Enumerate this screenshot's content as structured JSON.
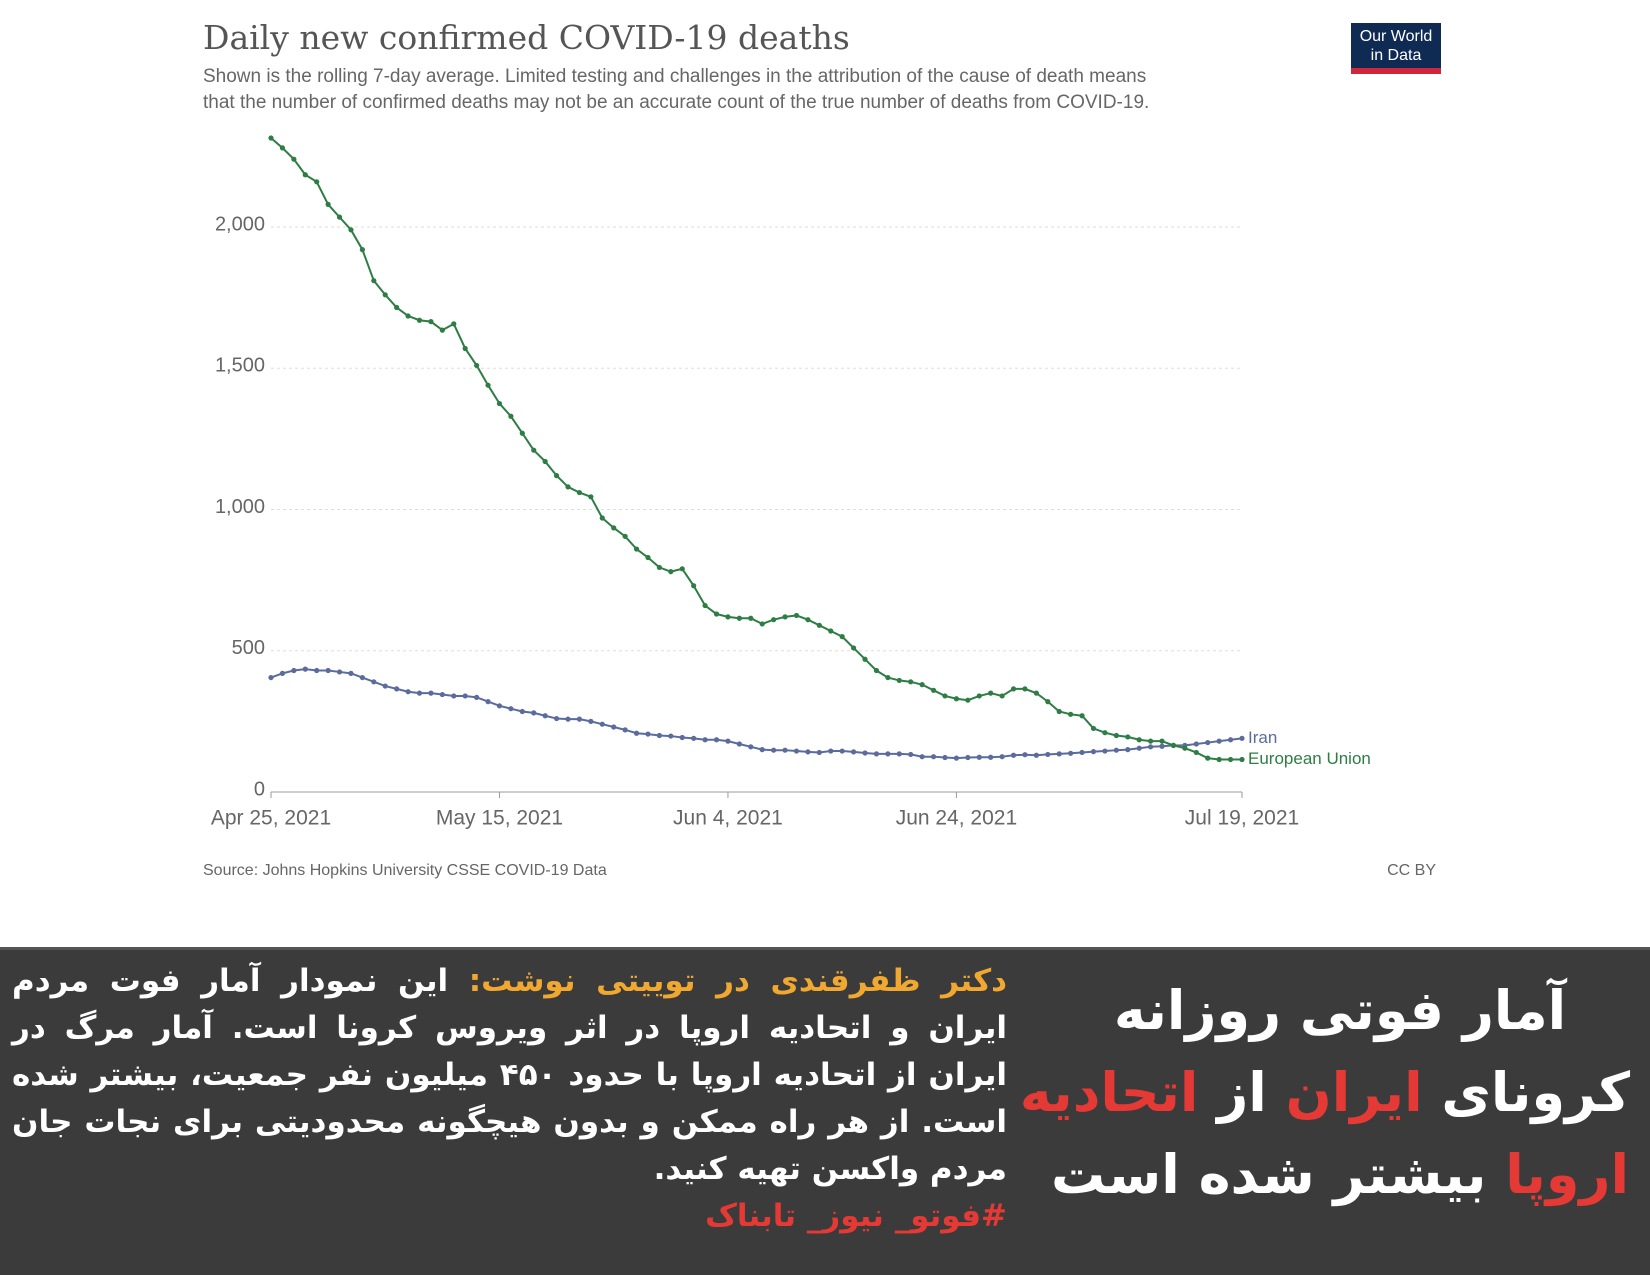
{
  "chart_data": {
    "type": "line",
    "title": "Daily new confirmed COVID-19 deaths",
    "subtitle": [
      "Shown is the rolling 7-day average. Limited testing and challenges in the attribution of the cause of death means",
      "that the number of confirmed deaths may not be an accurate count of the true number of deaths from COVID-19."
    ],
    "logo": [
      "Our World",
      "in Data"
    ],
    "source": "Source: Johns Hopkins University CSSE COVID-19 Data",
    "license": "CC BY",
    "x": [
      "2021-04-25",
      "2021-04-26",
      "2021-04-27",
      "2021-04-28",
      "2021-04-29",
      "2021-04-30",
      "2021-05-01",
      "2021-05-02",
      "2021-05-03",
      "2021-05-04",
      "2021-05-05",
      "2021-05-06",
      "2021-05-07",
      "2021-05-08",
      "2021-05-09",
      "2021-05-10",
      "2021-05-11",
      "2021-05-12",
      "2021-05-13",
      "2021-05-14",
      "2021-05-15",
      "2021-05-16",
      "2021-05-17",
      "2021-05-18",
      "2021-05-19",
      "2021-05-20",
      "2021-05-21",
      "2021-05-22",
      "2021-05-23",
      "2021-05-24",
      "2021-05-25",
      "2021-05-26",
      "2021-05-27",
      "2021-05-28",
      "2021-05-29",
      "2021-05-30",
      "2021-05-31",
      "2021-06-01",
      "2021-06-02",
      "2021-06-03",
      "2021-06-04",
      "2021-06-05",
      "2021-06-06",
      "2021-06-07",
      "2021-06-08",
      "2021-06-09",
      "2021-06-10",
      "2021-06-11",
      "2021-06-12",
      "2021-06-13",
      "2021-06-14",
      "2021-06-15",
      "2021-06-16",
      "2021-06-17",
      "2021-06-18",
      "2021-06-19",
      "2021-06-20",
      "2021-06-21",
      "2021-06-22",
      "2021-06-23",
      "2021-06-24",
      "2021-06-25",
      "2021-06-26",
      "2021-06-27",
      "2021-06-28",
      "2021-06-29",
      "2021-06-30",
      "2021-07-01",
      "2021-07-02",
      "2021-07-03",
      "2021-07-04",
      "2021-07-05",
      "2021-07-06",
      "2021-07-07",
      "2021-07-08",
      "2021-07-09",
      "2021-07-10",
      "2021-07-11",
      "2021-07-12",
      "2021-07-13",
      "2021-07-14",
      "2021-07-15",
      "2021-07-16",
      "2021-07-17",
      "2021-07-18",
      "2021-07-19"
    ],
    "series": [
      {
        "name": "Iran",
        "color": "#5b6b9e",
        "values": [
          405,
          420,
          430,
          435,
          430,
          430,
          425,
          420,
          405,
          390,
          375,
          365,
          355,
          350,
          350,
          345,
          340,
          340,
          335,
          320,
          305,
          295,
          285,
          280,
          270,
          260,
          258,
          258,
          250,
          240,
          230,
          220,
          208,
          205,
          200,
          198,
          193,
          190,
          185,
          185,
          180,
          170,
          160,
          150,
          148,
          148,
          145,
          142,
          140,
          145,
          145,
          142,
          138,
          135,
          135,
          135,
          133,
          125,
          125,
          122,
          120,
          122,
          123,
          123,
          125,
          130,
          132,
          130,
          133,
          135,
          137,
          140,
          143,
          145,
          148,
          150,
          155,
          160,
          162,
          165,
          165,
          170,
          175,
          180,
          185,
          190
        ]
      },
      {
        "name": "European Union",
        "color": "#2e7d44",
        "values": [
          2315,
          2280,
          2240,
          2185,
          2160,
          2080,
          2035,
          1990,
          1920,
          1810,
          1760,
          1715,
          1685,
          1670,
          1665,
          1635,
          1657,
          1570,
          1510,
          1440,
          1375,
          1330,
          1270,
          1210,
          1170,
          1120,
          1080,
          1060,
          1045,
          970,
          935,
          905,
          860,
          830,
          795,
          780,
          790,
          730,
          660,
          630,
          620,
          615,
          615,
          595,
          610,
          620,
          625,
          610,
          590,
          570,
          550,
          510,
          470,
          430,
          405,
          395,
          390,
          380,
          360,
          340,
          330,
          325,
          340,
          350,
          340,
          365,
          365,
          350,
          320,
          285,
          275,
          270,
          225,
          210,
          200,
          195,
          185,
          180,
          180,
          165,
          155,
          140,
          120,
          115,
          115,
          115
        ]
      }
    ],
    "xlim": [
      "2021-04-25",
      "2021-07-19"
    ],
    "xticks": [
      {
        "value": "2021-04-25",
        "label": "Apr 25, 2021"
      },
      {
        "value": "2021-05-15",
        "label": "May 15, 2021"
      },
      {
        "value": "2021-06-04",
        "label": "Jun 4, 2021"
      },
      {
        "value": "2021-06-24",
        "label": "Jun 24, 2021"
      },
      {
        "value": "2021-07-19",
        "label": "Jul 19, 2021"
      }
    ],
    "ylim": [
      0,
      2400
    ],
    "yticks": [
      0,
      500,
      {
        "value": 1000,
        "label": "1,000"
      },
      {
        "value": 1500,
        "label": "1,500"
      },
      {
        "value": 2000,
        "label": "2,000"
      }
    ],
    "grid": true
  },
  "headline": [
    [
      {
        "text": "آمار فوتی روزانه",
        "color": "#ffffff"
      }
    ],
    [
      {
        "text": "کرونای ",
        "color": "#ffffff"
      },
      {
        "text": "ایران",
        "color": "#e53935"
      },
      {
        "text": " از ",
        "color": "#ffffff"
      },
      {
        "text": "اتحادیه",
        "color": "#e53935"
      }
    ],
    [
      {
        "text": "اروپا",
        "color": "#e53935"
      },
      {
        "text": " بیشتر شده است",
        "color": "#ffffff"
      }
    ]
  ],
  "body": {
    "lead": "دکتر ظفرقندی در توییتی نوشت:",
    "lead_color": "#f0a830",
    "text": "این نمودار آمار فوت مردم ایران و اتحادیه اروپا در اثر ویروس کرونا است. آمار مرگ در ایران از اتحادیه اروپا با حدود ۴۵۰ میلیون نفر جمعیت، بیشتر شده است. از هر راه ممکن و بدون هیچگونه محدودیتی برای نجات جان مردم واکسن تهیه کنید.",
    "hashtag": "#فوتو_ نیوز_ تابناک",
    "hashtag_color": "#e53935"
  }
}
